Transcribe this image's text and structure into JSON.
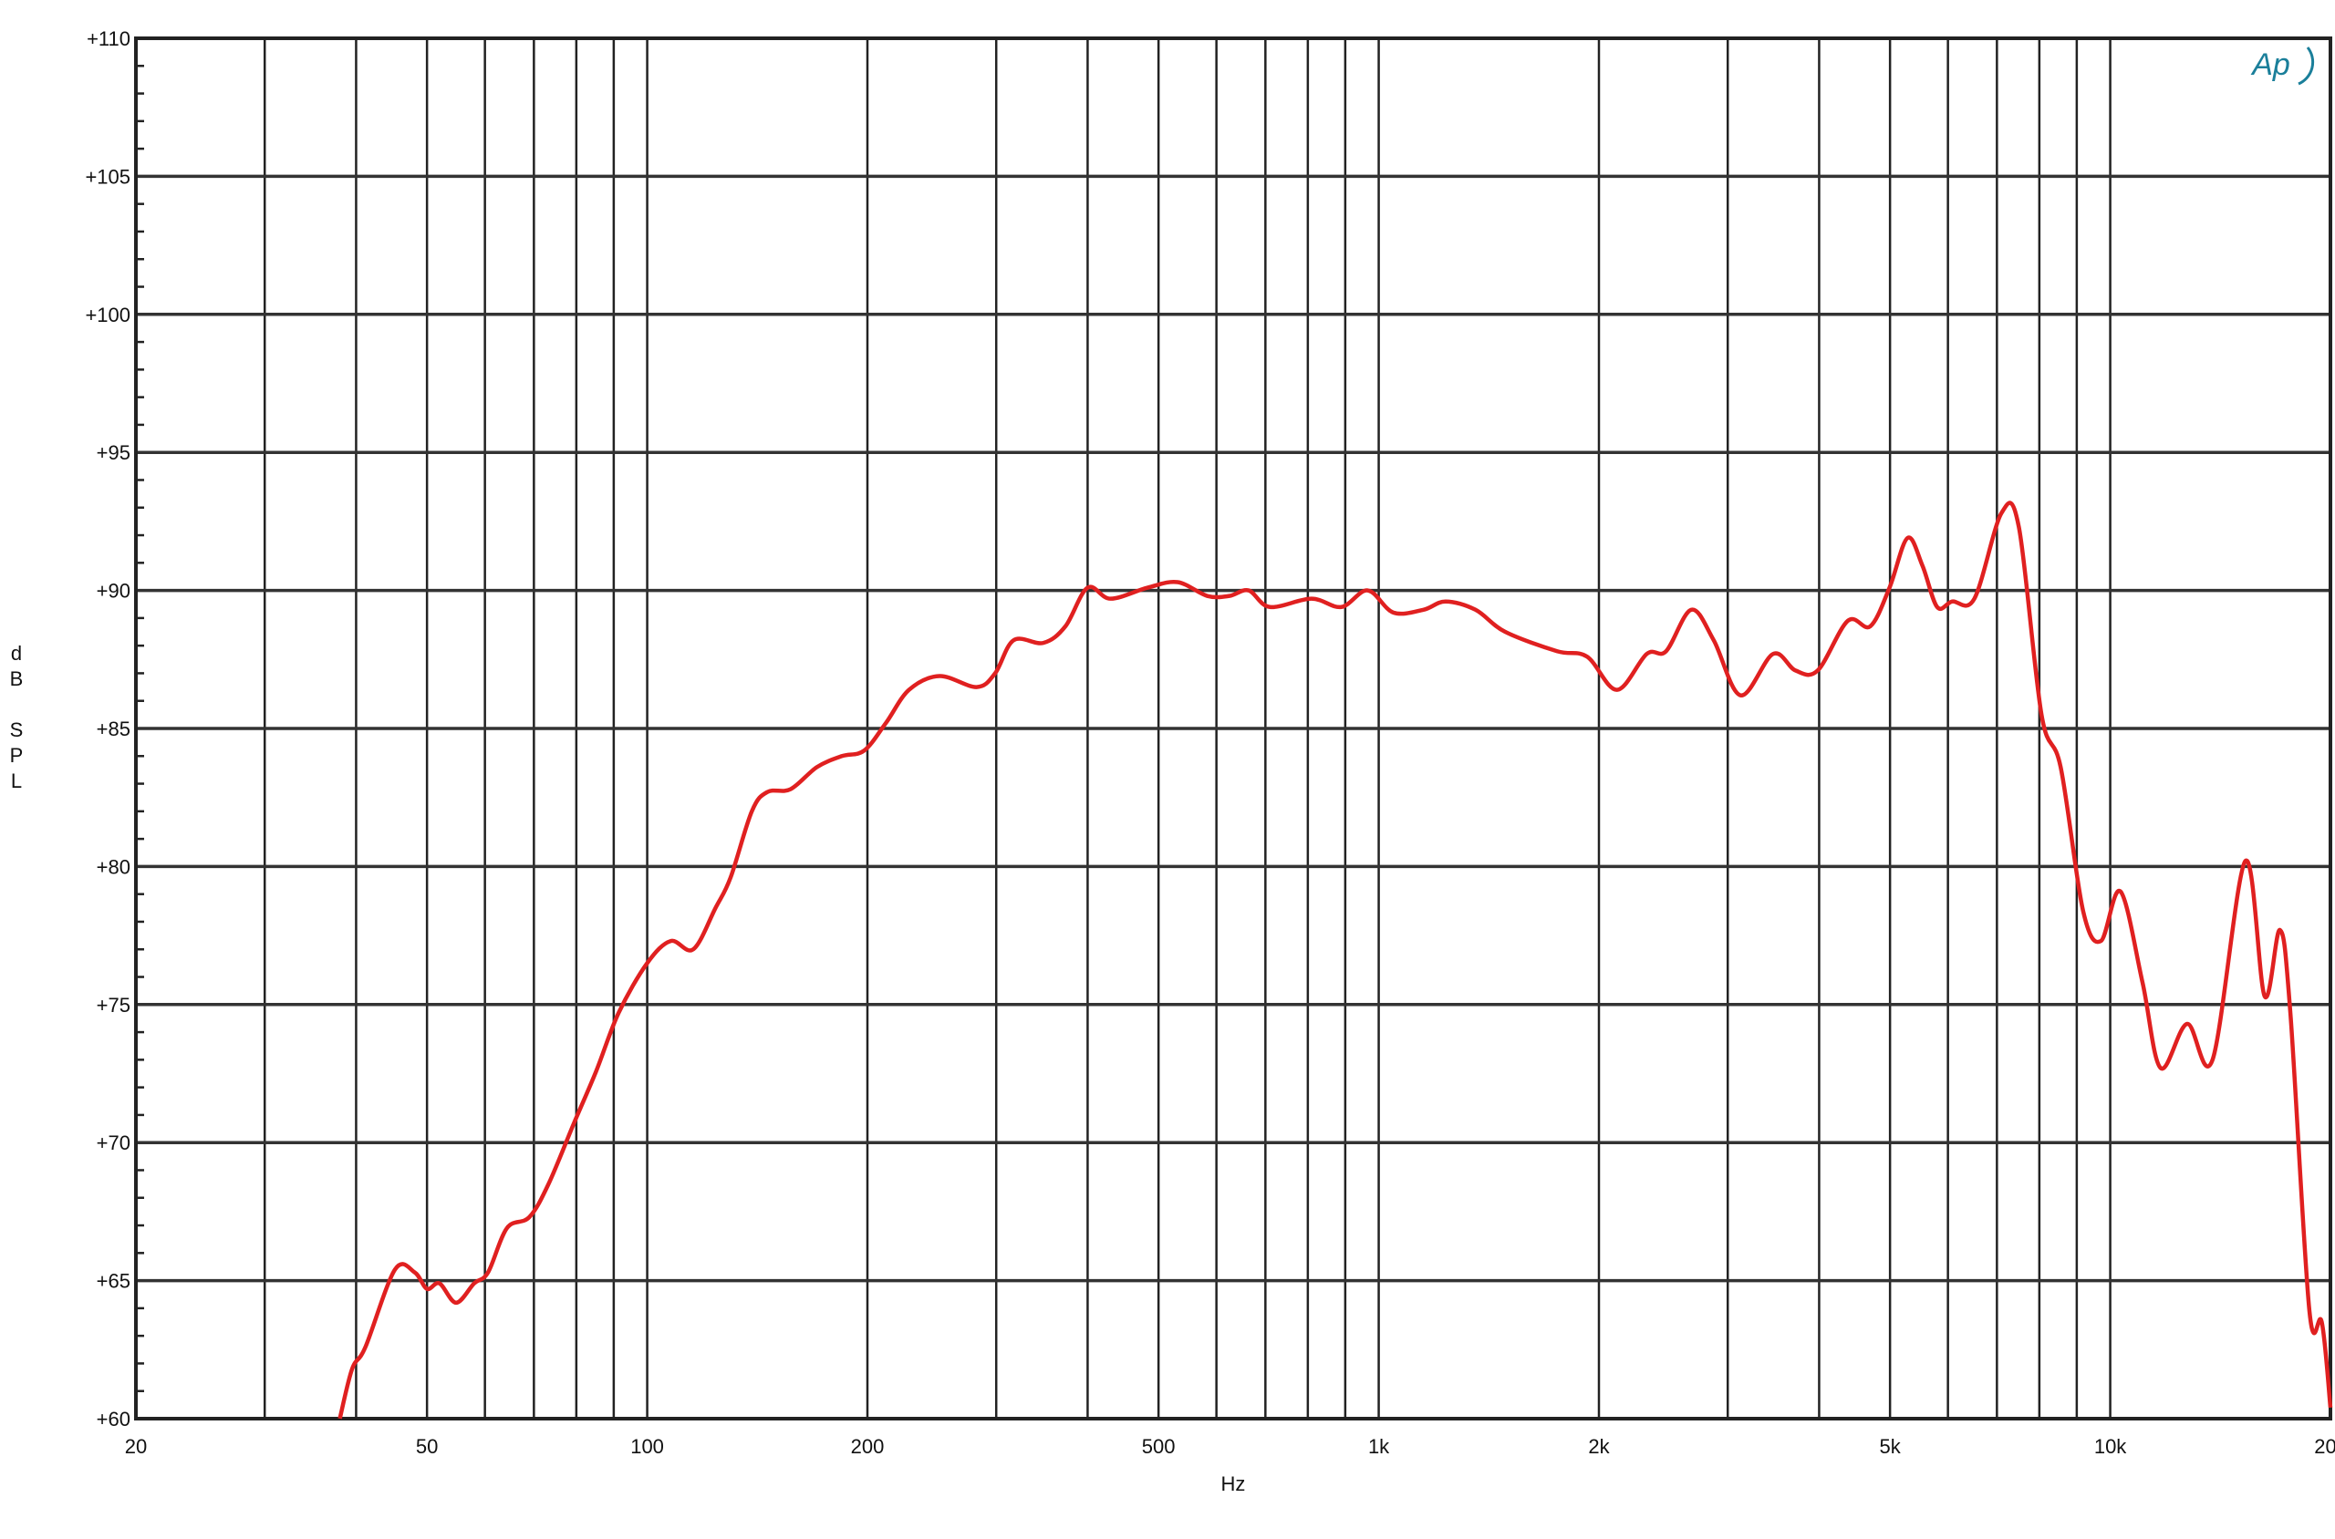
{
  "chart_data": {
    "type": "line",
    "title": "",
    "xlabel": "Hz",
    "ylabel": "dB SPL",
    "x_scale": "log",
    "xlim": [
      20,
      20000
    ],
    "ylim": [
      60,
      110
    ],
    "grid": true,
    "x_tick_labels": [
      {
        "value": 20,
        "label": "20"
      },
      {
        "value": 50,
        "label": "50"
      },
      {
        "value": 100,
        "label": "100"
      },
      {
        "value": 200,
        "label": "200"
      },
      {
        "value": 500,
        "label": "500"
      },
      {
        "value": 1000,
        "label": "1k"
      },
      {
        "value": 2000,
        "label": "2k"
      },
      {
        "value": 5000,
        "label": "5k"
      },
      {
        "value": 10000,
        "label": "10k"
      },
      {
        "value": 20000,
        "label": "20k"
      }
    ],
    "x_gridlines": [
      30,
      40,
      50,
      60,
      70,
      80,
      90,
      100,
      200,
      300,
      400,
      500,
      600,
      700,
      800,
      900,
      1000,
      2000,
      3000,
      4000,
      5000,
      6000,
      7000,
      8000,
      9000,
      10000
    ],
    "y_tick_labels": [
      {
        "value": 60,
        "label": "+60"
      },
      {
        "value": 65,
        "label": "+65"
      },
      {
        "value": 70,
        "label": "+70"
      },
      {
        "value": 75,
        "label": "+75"
      },
      {
        "value": 80,
        "label": "+80"
      },
      {
        "value": 85,
        "label": "+85"
      },
      {
        "value": 90,
        "label": "+90"
      },
      {
        "value": 95,
        "label": "+95"
      },
      {
        "value": 100,
        "label": "+100"
      },
      {
        "value": 105,
        "label": "+105"
      },
      {
        "value": 110,
        "label": "+110"
      }
    ],
    "series": [
      {
        "color": "#e02020",
        "x": [
          38,
          39.5,
          41.2,
          45.2,
          48.1,
          50,
          52,
          54.8,
          58,
          60.6,
          64.3,
          69,
          73.3,
          79.4,
          85.2,
          91.4,
          100,
          107.7,
          115.6,
          124,
          130,
          139,
          146,
          157,
          170.6,
          184.6,
          198,
          212,
          228,
          251,
          282,
          299,
          317,
          348,
          373,
          400,
          430,
          483,
          531,
          583,
          625,
          664,
          710,
          809,
          889,
          966,
          1047,
          1151,
          1234,
          1356,
          1489,
          1753,
          1927,
          2117,
          2325,
          2471,
          2675,
          2870,
          3124,
          3460,
          3713,
          3982,
          4378,
          4698,
          4992,
          5283,
          5537,
          5800,
          6080,
          6520,
          7100,
          7500,
          8055,
          8555,
          9180,
          9710,
          10325,
          11070,
          11720,
          12740,
          13800,
          15300,
          16260,
          17060,
          17630,
          18720,
          19460,
          20000
        ],
        "y": [
          60,
          61.8,
          62.6,
          65.4,
          65.3,
          64.7,
          64.9,
          64.2,
          64.9,
          65.3,
          66.9,
          67.3,
          68.5,
          70.7,
          72.6,
          74.7,
          76.5,
          77.3,
          77.0,
          78.5,
          79.6,
          82.0,
          82.7,
          82.8,
          83.6,
          84.0,
          84.2,
          85.2,
          86.4,
          86.9,
          86.5,
          87.0,
          88.2,
          88.1,
          88.7,
          90.1,
          89.7,
          90.1,
          90.3,
          89.8,
          89.8,
          90.0,
          89.4,
          89.7,
          89.4,
          90.0,
          89.2,
          89.3,
          89.6,
          89.3,
          88.5,
          87.8,
          87.6,
          86.4,
          87.7,
          87.8,
          89.3,
          88.2,
          86.2,
          87.7,
          87.1,
          87.1,
          88.9,
          88.7,
          90.1,
          91.9,
          90.9,
          89.4,
          89.6,
          89.7,
          92.8,
          92.3,
          85.5,
          83.6,
          78.4,
          77.3,
          79.1,
          75.8,
          72.7,
          74.3,
          73.0,
          80.2,
          75.3,
          77.7,
          74.7,
          63.9,
          63.5,
          60.4
        ]
      }
    ]
  },
  "ylabel_letters": [
    "d",
    "B",
    "",
    "S",
    "P",
    "L"
  ],
  "logo_text": "Ap"
}
